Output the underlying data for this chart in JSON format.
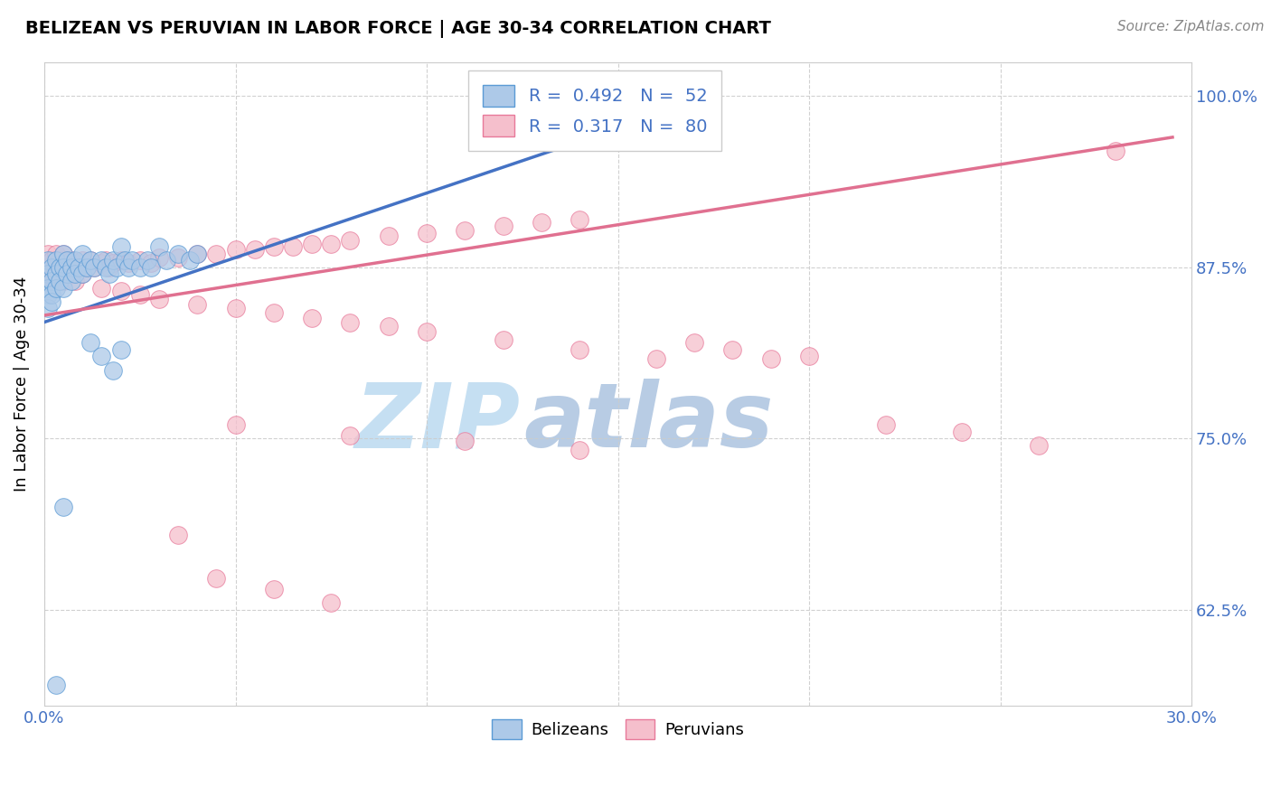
{
  "title": "BELIZEAN VS PERUVIAN IN LABOR FORCE | AGE 30-34 CORRELATION CHART",
  "source_text": "Source: ZipAtlas.com",
  "ylabel": "In Labor Force | Age 30-34",
  "xlim": [
    0.0,
    0.3
  ],
  "ylim": [
    0.555,
    1.025
  ],
  "xticks": [
    0.0,
    0.05,
    0.1,
    0.15,
    0.2,
    0.25,
    0.3
  ],
  "xticklabels": [
    "0.0%",
    "",
    "",
    "",
    "",
    "",
    "30.0%"
  ],
  "yticks": [
    0.625,
    0.75,
    0.875,
    1.0
  ],
  "yticklabels": [
    "62.5%",
    "75.0%",
    "87.5%",
    "100.0%"
  ],
  "belizean_R": 0.492,
  "belizean_N": 52,
  "peruvian_R": 0.317,
  "peruvian_N": 80,
  "belizean_color": "#adc9e8",
  "peruvian_color": "#f5bfcc",
  "belizean_edge_color": "#5b9bd5",
  "peruvian_edge_color": "#e8799a",
  "belizean_line_color": "#4472c4",
  "peruvian_line_color": "#e07090",
  "legend_label_belizean": "Belizeans",
  "legend_label_peruvian": "Peruvians",
  "belizean_x": [
    0.001,
    0.001,
    0.001,
    0.001,
    0.001,
    0.002,
    0.002,
    0.002,
    0.002,
    0.003,
    0.003,
    0.003,
    0.004,
    0.004,
    0.005,
    0.005,
    0.005,
    0.006,
    0.006,
    0.007,
    0.007,
    0.008,
    0.008,
    0.009,
    0.01,
    0.01,
    0.011,
    0.012,
    0.013,
    0.015,
    0.016,
    0.017,
    0.018,
    0.019,
    0.02,
    0.021,
    0.022,
    0.023,
    0.025,
    0.027,
    0.028,
    0.03,
    0.032,
    0.035,
    0.038,
    0.04,
    0.012,
    0.015,
    0.018,
    0.02,
    0.003,
    0.005
  ],
  "belizean_y": [
    0.88,
    0.87,
    0.86,
    0.855,
    0.845,
    0.875,
    0.865,
    0.855,
    0.85,
    0.88,
    0.87,
    0.86,
    0.875,
    0.865,
    0.885,
    0.875,
    0.86,
    0.88,
    0.87,
    0.875,
    0.865,
    0.88,
    0.87,
    0.875,
    0.885,
    0.87,
    0.875,
    0.88,
    0.875,
    0.88,
    0.875,
    0.87,
    0.88,
    0.875,
    0.89,
    0.88,
    0.875,
    0.88,
    0.875,
    0.88,
    0.875,
    0.89,
    0.88,
    0.885,
    0.88,
    0.885,
    0.82,
    0.81,
    0.8,
    0.815,
    0.57,
    0.7
  ],
  "peruvian_x": [
    0.001,
    0.001,
    0.001,
    0.002,
    0.002,
    0.003,
    0.003,
    0.003,
    0.004,
    0.004,
    0.005,
    0.005,
    0.005,
    0.006,
    0.006,
    0.007,
    0.007,
    0.008,
    0.008,
    0.009,
    0.01,
    0.01,
    0.011,
    0.012,
    0.013,
    0.015,
    0.016,
    0.017,
    0.018,
    0.02,
    0.022,
    0.025,
    0.028,
    0.03,
    0.035,
    0.04,
    0.045,
    0.05,
    0.055,
    0.06,
    0.065,
    0.07,
    0.075,
    0.08,
    0.09,
    0.1,
    0.11,
    0.12,
    0.13,
    0.14,
    0.015,
    0.02,
    0.025,
    0.03,
    0.04,
    0.05,
    0.06,
    0.07,
    0.08,
    0.09,
    0.1,
    0.12,
    0.14,
    0.16,
    0.17,
    0.18,
    0.19,
    0.2,
    0.22,
    0.24,
    0.26,
    0.28,
    0.05,
    0.08,
    0.11,
    0.14,
    0.035,
    0.045,
    0.06,
    0.075
  ],
  "peruvian_y": [
    0.885,
    0.875,
    0.865,
    0.88,
    0.87,
    0.885,
    0.875,
    0.865,
    0.88,
    0.87,
    0.885,
    0.875,
    0.865,
    0.88,
    0.87,
    0.88,
    0.87,
    0.875,
    0.865,
    0.875,
    0.88,
    0.87,
    0.875,
    0.88,
    0.875,
    0.878,
    0.88,
    0.875,
    0.878,
    0.88,
    0.878,
    0.88,
    0.878,
    0.882,
    0.882,
    0.885,
    0.885,
    0.888,
    0.888,
    0.89,
    0.89,
    0.892,
    0.892,
    0.895,
    0.898,
    0.9,
    0.902,
    0.905,
    0.908,
    0.91,
    0.86,
    0.858,
    0.855,
    0.852,
    0.848,
    0.845,
    0.842,
    0.838,
    0.835,
    0.832,
    0.828,
    0.822,
    0.815,
    0.808,
    0.82,
    0.815,
    0.808,
    0.81,
    0.76,
    0.755,
    0.745,
    0.96,
    0.76,
    0.752,
    0.748,
    0.742,
    0.68,
    0.648,
    0.64,
    0.63
  ],
  "blue_line_x": [
    0.0,
    0.175
  ],
  "blue_line_y": [
    0.835,
    1.0
  ],
  "pink_line_x": [
    0.0,
    0.295
  ],
  "pink_line_y": [
    0.84,
    0.97
  ],
  "watermark_text": "ZIP",
  "watermark_text2": "atlas",
  "watermark_color1": "#c5dff2",
  "watermark_color2": "#b8cce4"
}
